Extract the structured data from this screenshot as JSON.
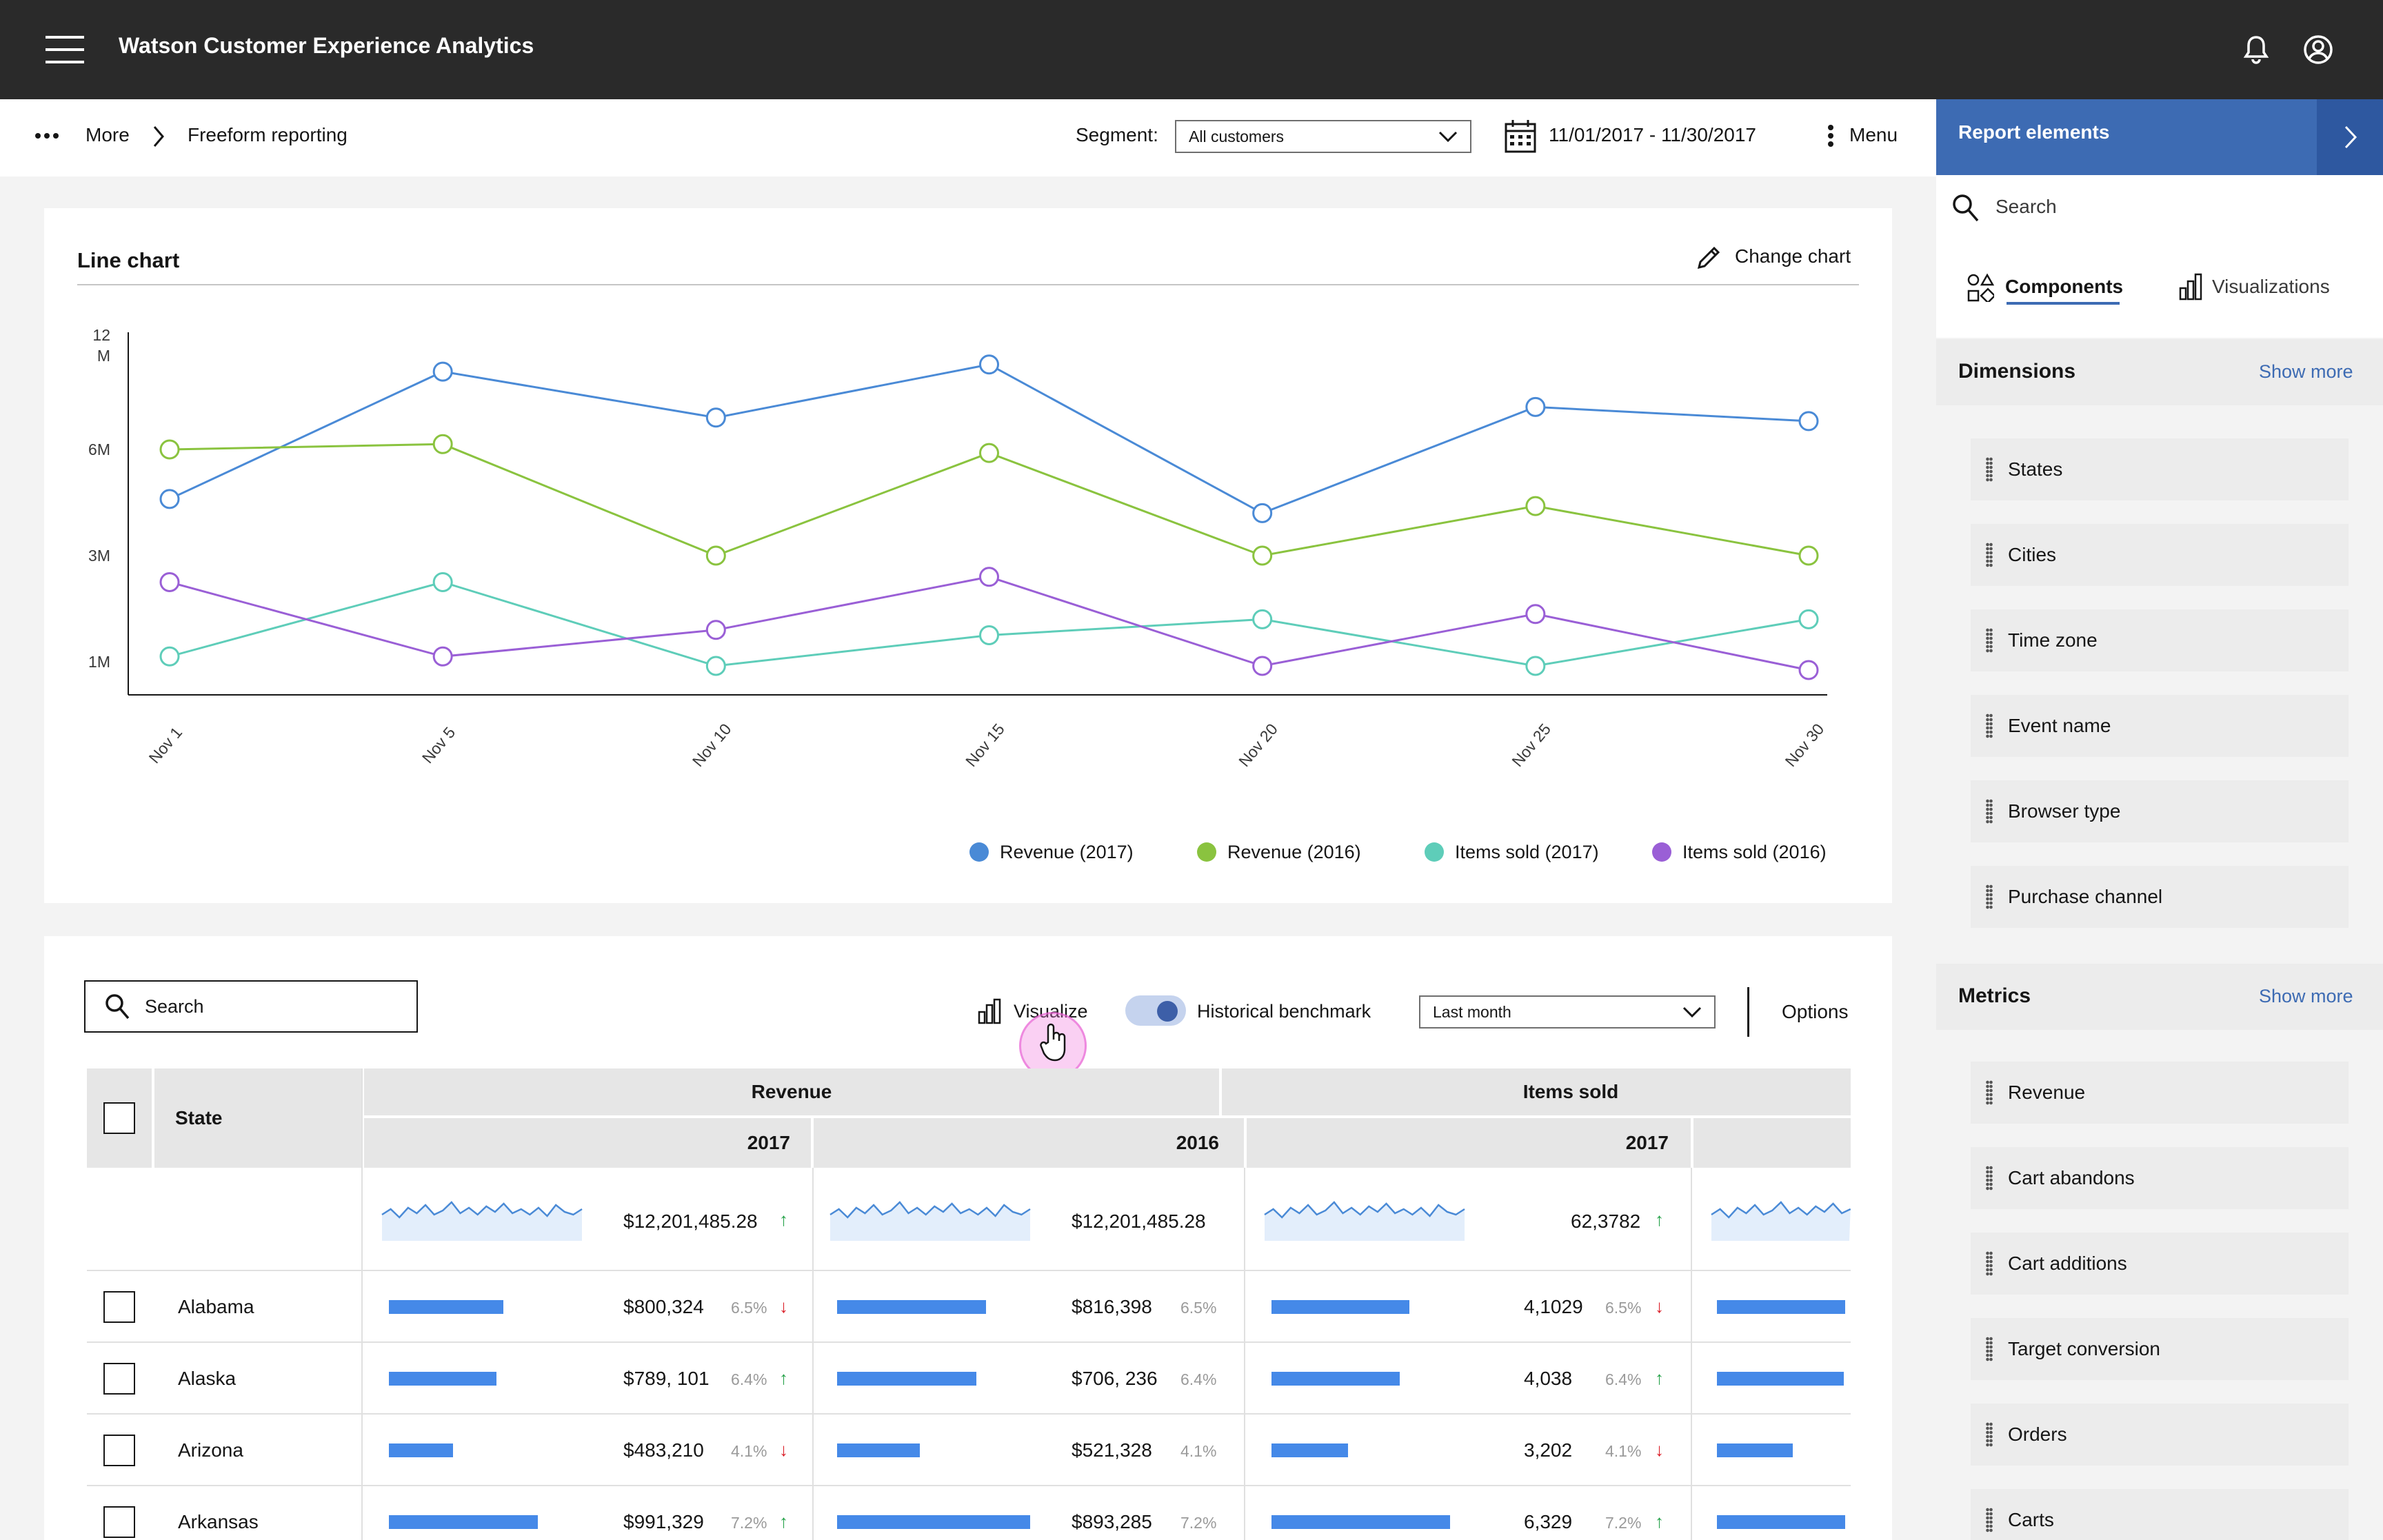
{
  "header": {
    "app_title": "Watson Customer Experience Analytics"
  },
  "breadcrumb": {
    "more_label": "More",
    "current": "Freeform reporting"
  },
  "segment": {
    "label": "Segment:",
    "value": "All customers"
  },
  "date_range": "11/01/2017 - 11/30/2017",
  "menu_label": "Menu",
  "right_panel": {
    "title": "Report elements",
    "search_placeholder": "Search",
    "tabs": {
      "components": "Components",
      "visualizations": "Visualizations"
    },
    "dimensions": {
      "title": "Dimensions",
      "show_more": "Show more",
      "items": [
        "States",
        "Cities",
        "Time zone",
        "Event name",
        "Browser type",
        "Purchase channel"
      ]
    },
    "metrics": {
      "title": "Metrics",
      "show_more": "Show more",
      "items": [
        "Revenue",
        "Cart abandons",
        "Cart additions",
        "Target conversion",
        "Orders",
        "Carts"
      ]
    }
  },
  "chart_card": {
    "title": "Line chart",
    "change_chart": "Change chart"
  },
  "chart_data": {
    "type": "line",
    "x": [
      "Nov 1",
      "Nov 5",
      "Nov 10",
      "Nov 15",
      "Nov 20",
      "Nov 25",
      "Nov 30"
    ],
    "y_ticks": [
      "12 M",
      "6M",
      "3M",
      "1M"
    ],
    "grid": false,
    "legend_position": "bottom-right",
    "series": [
      {
        "name": "Revenue (2017)",
        "color": "#4a8ad6",
        "values": [
          4.6,
          10.4,
          7.8,
          10.8,
          4.2,
          8.4,
          7.6
        ]
      },
      {
        "name": "Revenue (2016)",
        "color": "#8ac33f",
        "values": [
          6.0,
          6.3,
          3.0,
          5.9,
          3.0,
          4.4,
          3.0
        ]
      },
      {
        "name": "Items sold (2017)",
        "color": "#5ecdb9",
        "values": [
          1.1,
          2.5,
          0.9,
          1.5,
          1.8,
          0.9,
          1.8
        ]
      },
      {
        "name": "Items sold (2016)",
        "color": "#9a5fd6",
        "values": [
          2.5,
          1.1,
          1.6,
          2.6,
          0.9,
          1.9,
          0.8
        ]
      }
    ]
  },
  "table": {
    "search_placeholder": "Search",
    "visualize_label": "Visualize",
    "benchmark_label": "Historical benchmark",
    "period_value": "Last month",
    "options_label": "Options",
    "state_header": "State",
    "group_revenue": "Revenue",
    "group_items": "Items sold",
    "years": [
      "2017",
      "2016",
      "2017"
    ],
    "totals": [
      "$12,201,485.28",
      "$12,201,485.28",
      "62,3782"
    ],
    "rows": [
      {
        "state": "Alabama",
        "rev17": "$800,324",
        "rev17_pct": "6.5%",
        "rev17_dir": "down",
        "rev16": "$816,398",
        "rev16_pct": "6.5%",
        "items17": "4,1029",
        "items17_pct": "6.5%",
        "items17_dir": "down",
        "bars": [
          0.77,
          0.77,
          0.74,
          0.95
        ]
      },
      {
        "state": "Alaska",
        "rev17": "$789, 101",
        "rev17_pct": "6.4%",
        "rev17_dir": "up",
        "rev16": "$706, 236",
        "rev16_pct": "6.4%",
        "items17": "4,038",
        "items17_pct": "6.4%",
        "items17_dir": "up",
        "bars": [
          0.72,
          0.72,
          0.69,
          0.94
        ]
      },
      {
        "state": "Arizona",
        "rev17": "$483,210",
        "rev17_pct": "4.1%",
        "rev17_dir": "down",
        "rev16": "$521,328",
        "rev16_pct": "4.1%",
        "items17": "3,202",
        "items17_pct": "4.1%",
        "items17_dir": "down",
        "bars": [
          0.43,
          0.43,
          0.41,
          0.56
        ]
      },
      {
        "state": "Arkansas",
        "rev17": "$991,329",
        "rev17_pct": "7.2%",
        "rev17_dir": "up",
        "rev16": "$893,285",
        "rev16_pct": "7.2%",
        "items17": "6,329",
        "items17_pct": "7.2%",
        "items17_dir": "up",
        "bars": [
          1.0,
          1.0,
          0.96,
          0.95
        ]
      }
    ]
  }
}
